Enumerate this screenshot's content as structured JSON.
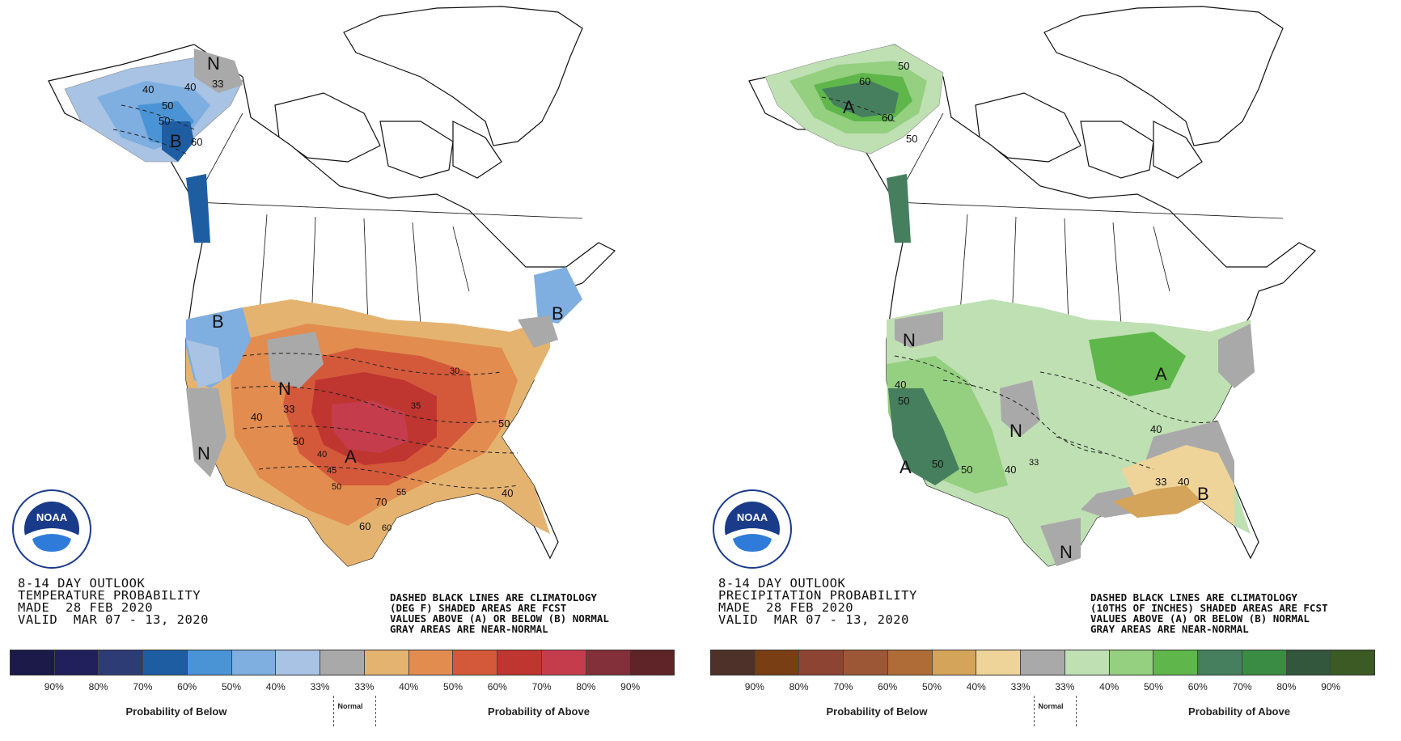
{
  "panels": [
    {
      "id": "temperature",
      "title_lines": [
        "8-14 DAY OUTLOOK",
        "TEMPERATURE PROBABILITY",
        "MADE  28 FEB 2020",
        "VALID  MAR 07 - 13, 2020"
      ],
      "note_lines": [
        "DASHED BLACK LINES ARE CLIMATOLOGY",
        "(DEG F) SHADED AREAS ARE FCST",
        "VALUES ABOVE (A) OR BELOW (B) NORMAL",
        "GRAY AREAS ARE NEAR-NORMAL"
      ],
      "legend_colors": [
        "#1c1a48",
        "#211f5c",
        "#2e3c75",
        "#1f5da3",
        "#4a94d6",
        "#7faee0",
        "#a8c3e4",
        "#a9a9a9",
        "#e5b370",
        "#e28c50",
        "#d4593a",
        "#bf3530",
        "#c53d4c",
        "#83303b",
        "#5f2427"
      ],
      "tick_labels": [
        "90%",
        "80%",
        "70%",
        "60%",
        "50%",
        "40%",
        "33%",
        "33%",
        "40%",
        "50%",
        "60%",
        "70%",
        "80%",
        "90%"
      ],
      "below_caption": "Probability of Below",
      "normal_caption": "Normal",
      "above_caption": "Probability of Above",
      "map_labels": [
        {
          "t": "N"
        },
        {
          "t": "33"
        },
        {
          "t": "40"
        },
        {
          "t": "40"
        },
        {
          "t": "50"
        },
        {
          "t": "50"
        },
        {
          "t": "60"
        },
        {
          "t": "B"
        },
        {
          "t": "B"
        },
        {
          "t": "N"
        },
        {
          "t": "33"
        },
        {
          "t": "40"
        },
        {
          "t": "N"
        },
        {
          "t": "B"
        },
        {
          "t": "50"
        },
        {
          "t": "40"
        },
        {
          "t": "45"
        },
        {
          "t": "A"
        },
        {
          "t": "50"
        },
        {
          "t": "70"
        },
        {
          "t": "55"
        },
        {
          "t": "60"
        },
        {
          "t": "60"
        },
        {
          "t": "35"
        },
        {
          "t": "30"
        },
        {
          "t": "50"
        },
        {
          "t": "40"
        }
      ]
    },
    {
      "id": "precipitation",
      "title_lines": [
        "8-14 DAY OUTLOOK",
        "PRECIPITATION PROBABILITY",
        "MADE  28 FEB 2020",
        "VALID  MAR 07 - 13, 2020"
      ],
      "note_lines": [
        "DASHED BLACK LINES ARE CLIMATOLOGY",
        "(10THS OF INCHES) SHADED AREAS ARE FCST",
        "VALUES ABOVE (A) OR BELOW (B) NORMAL",
        "GRAY AREAS ARE NEAR-NORMAL"
      ],
      "legend_colors": [
        "#4e3128",
        "#7a3e14",
        "#8d4433",
        "#9c5736",
        "#b06c36",
        "#d4a45a",
        "#efd49a",
        "#a9a9a9",
        "#bfe0b3",
        "#95cf80",
        "#5fb64a",
        "#467f5e",
        "#3a8c44",
        "#32573d",
        "#3c5a23"
      ],
      "tick_labels": [
        "90%",
        "80%",
        "70%",
        "60%",
        "50%",
        "40%",
        "33%",
        "33%",
        "40%",
        "50%",
        "60%",
        "70%",
        "80%",
        "90%"
      ],
      "below_caption": "Probability of Below",
      "normal_caption": "Normal",
      "above_caption": "Probability of Above",
      "map_labels": [
        {
          "t": "50"
        },
        {
          "t": "60"
        },
        {
          "t": "A"
        },
        {
          "t": "60"
        },
        {
          "t": "50"
        },
        {
          "t": "N"
        },
        {
          "t": "40"
        },
        {
          "t": "50"
        },
        {
          "t": "A"
        },
        {
          "t": "50"
        },
        {
          "t": "50"
        },
        {
          "t": "40"
        },
        {
          "t": "N"
        },
        {
          "t": "33"
        },
        {
          "t": "A"
        },
        {
          "t": "40"
        },
        {
          "t": "33"
        },
        {
          "t": "40"
        },
        {
          "t": "B"
        },
        {
          "t": "N"
        }
      ]
    }
  ],
  "logo_text": "NOAA"
}
